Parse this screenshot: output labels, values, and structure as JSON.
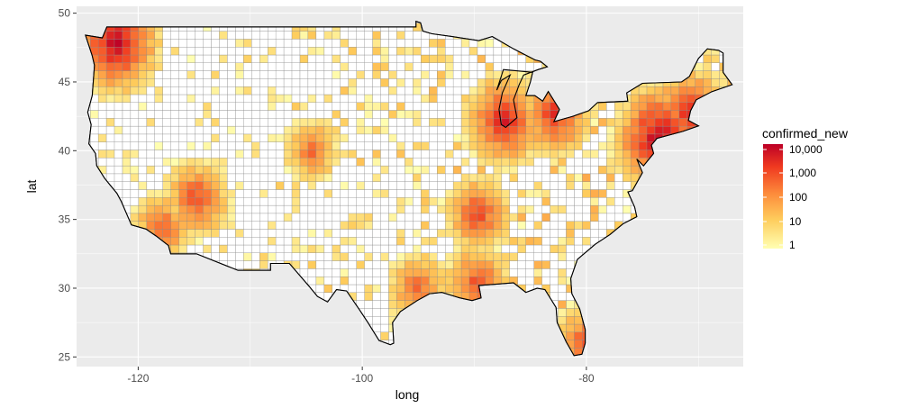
{
  "chart_data": {
    "type": "choropleth-map",
    "xlabel": "long",
    "ylabel": "lat",
    "x_ticks": [
      -120,
      -100,
      -80
    ],
    "y_ticks": [
      25,
      30,
      35,
      40,
      45,
      50
    ],
    "xlim": [
      -125.5,
      -66
    ],
    "ylim": [
      24.3,
      50.5
    ],
    "legend": {
      "title": "confirmed_new",
      "scale": "log10",
      "position": "right",
      "labels": [
        "10,000",
        "1,000",
        "100",
        "10",
        "1"
      ],
      "colors": [
        "#bd0026",
        "#f03b20",
        "#fd8d3c",
        "#fecc5c",
        "#ffffb2"
      ]
    },
    "panel_background": "#ebebeb",
    "grid": true,
    "county_fill_na": "#ffffff",
    "county_border": "#555555",
    "hotspots": [
      {
        "region": "Seattle, WA",
        "long": -122.3,
        "lat": 47.6,
        "level": 4
      },
      {
        "region": "New York, NY",
        "long": -73.9,
        "lat": 40.7,
        "level": 4
      },
      {
        "region": "Boston, MA",
        "long": -71.1,
        "lat": 42.4,
        "level": 3.5
      },
      {
        "region": "Detroit, MI",
        "long": -83.1,
        "lat": 42.4,
        "level": 3.3
      },
      {
        "region": "Chicago, IL",
        "long": -87.7,
        "lat": 41.9,
        "level": 3.5
      },
      {
        "region": "New Orleans, LA",
        "long": -90.1,
        "lat": 30.0,
        "level": 3
      },
      {
        "region": "Las Vegas, NV",
        "long": -115.1,
        "lat": 36.2,
        "level": 3
      },
      {
        "region": "Los Angeles, CA",
        "long": -118.2,
        "lat": 34.1,
        "level": 2.7
      },
      {
        "region": "Miami, FL",
        "long": -80.2,
        "lat": 25.8,
        "level": 3
      },
      {
        "region": "Houston, TX",
        "long": -95.4,
        "lat": 29.8,
        "level": 2.7
      },
      {
        "region": "Philadelphia, PA",
        "long": -75.2,
        "lat": 40.0,
        "level": 3
      },
      {
        "region": "Denver, CO",
        "long": -104.9,
        "lat": 39.7,
        "level": 2.5
      },
      {
        "region": "Memphis, TN",
        "long": -90.0,
        "lat": 35.1,
        "level": 3
      }
    ]
  }
}
